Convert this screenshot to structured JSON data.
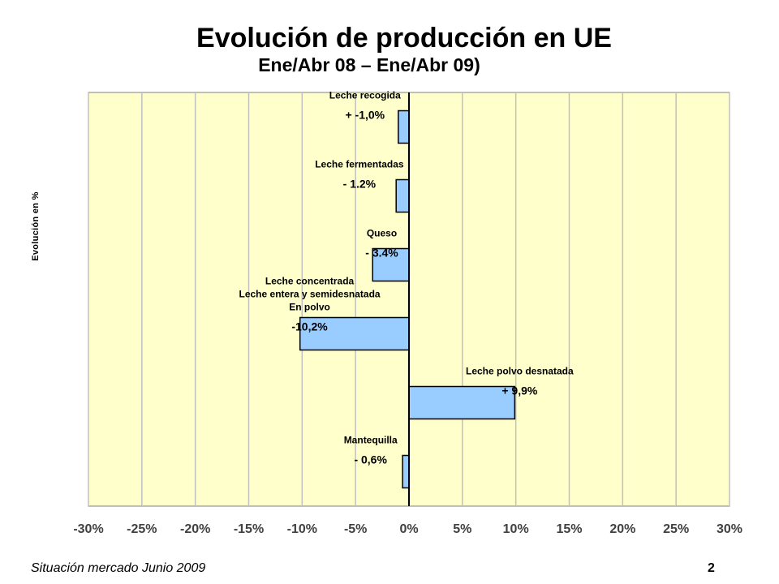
{
  "page": {
    "title": "Evolución de producción en UE",
    "subtitle": "Ene/Abr 08 – Ene/Abr 09)",
    "footer": "Situación mercado Junio 2009",
    "page_number": "2"
  },
  "chart_data": {
    "type": "bar",
    "orientation": "horizontal",
    "ylabel": "Evolución en %",
    "xlim": [
      -30,
      30
    ],
    "xticks": [
      "-30%",
      "-25%",
      "-20%",
      "-15%",
      "-10%",
      "-5%",
      "0%",
      "5%",
      "10%",
      "15%",
      "20%",
      "25%",
      "30%"
    ],
    "grid": true,
    "colors": {
      "plot_bg": "#ffffcc",
      "bar_fill": "#99ccff",
      "bar_stroke": "#000000",
      "grid": "#c0c0c0",
      "tick_label": "#404040"
    },
    "bars": [
      {
        "name_lines": [
          "Leche recogida"
        ],
        "value": -1.0,
        "value_label": "+ -1,0%"
      },
      {
        "name_lines": [
          "Leche fermentadas"
        ],
        "value": -1.2,
        "value_label": "- 1.2%"
      },
      {
        "name_lines": [
          "Queso"
        ],
        "value": -3.4,
        "value_label": "- 3.4%"
      },
      {
        "name_lines": [
          "Leche concentrada",
          "Leche entera y semidesnatada",
          "En polvo"
        ],
        "value": -10.2,
        "value_label": "-10,2%"
      },
      {
        "name_lines": [
          "Leche polvo desnatada"
        ],
        "value": 9.9,
        "value_label": "+ 9,9%"
      },
      {
        "name_lines": [
          "Mantequilla"
        ],
        "value": -0.6,
        "value_label": "- 0,6%"
      }
    ]
  }
}
